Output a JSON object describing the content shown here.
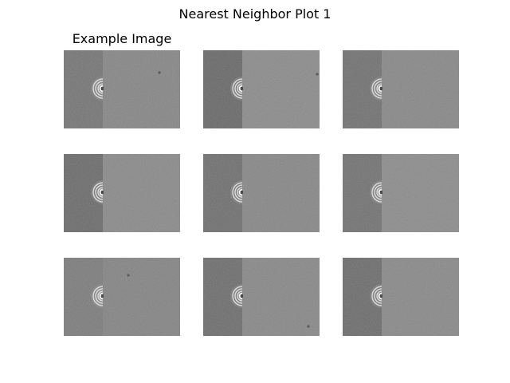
{
  "figure": {
    "title": "Nearest Neighbor Plot 1",
    "panels": [
      {
        "title": "Example Image"
      },
      {
        "title": ""
      },
      {
        "title": ""
      },
      {
        "title": ""
      },
      {
        "title": ""
      },
      {
        "title": ""
      },
      {
        "title": ""
      },
      {
        "title": ""
      },
      {
        "title": ""
      }
    ]
  }
}
